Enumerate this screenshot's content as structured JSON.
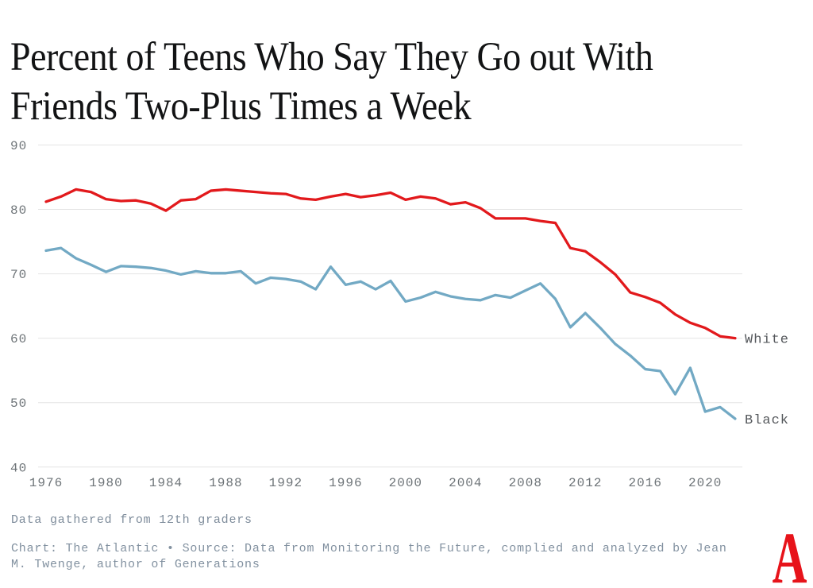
{
  "title": "Percent of Teens Who Say They Go out With Friends Two-Plus Times a Week",
  "footnote": "Data gathered from 12th graders",
  "source_line1": "Chart: The Atlantic • Source: Data from Monitoring the Future, complied and analyzed by Jean",
  "source_line2": "M. Twenge, author of Generations",
  "logo_letter": "A",
  "colors": {
    "white_series": "#e2191c",
    "black_series": "#72a9c4",
    "gridline": "#e4e4e4",
    "tick_label": "#6e7478",
    "series_label": "#55585c",
    "footnote_text": "#7e8c9b",
    "source_text": "#8291a0",
    "title_text": "#121314",
    "logo_red": "#e7131a",
    "background": "#ffffff"
  },
  "chart_data": {
    "type": "line",
    "title": "Percent of Teens Who Say They Go out With Friends Two-Plus Times a Week",
    "xlabel": "",
    "ylabel": "",
    "grid": true,
    "legend_position": "end-of-line",
    "xlim": [
      1976,
      2022
    ],
    "ylim": [
      40,
      90
    ],
    "yticks": [
      90,
      80,
      70,
      60,
      50,
      40
    ],
    "xticks": [
      1976,
      1980,
      1984,
      1988,
      1992,
      1996,
      2000,
      2004,
      2008,
      2012,
      2016,
      2020
    ],
    "x": [
      1976,
      1977,
      1978,
      1979,
      1980,
      1981,
      1982,
      1983,
      1984,
      1985,
      1986,
      1987,
      1988,
      1989,
      1990,
      1991,
      1992,
      1993,
      1994,
      1995,
      1996,
      1997,
      1998,
      1999,
      2000,
      2001,
      2002,
      2003,
      2004,
      2005,
      2006,
      2007,
      2008,
      2009,
      2010,
      2011,
      2012,
      2013,
      2014,
      2015,
      2016,
      2017,
      2018,
      2019,
      2020,
      2021,
      2022
    ],
    "series": [
      {
        "name": "White",
        "color": "#e2191c",
        "values": [
          81.2,
          82.0,
          83.1,
          82.7,
          81.6,
          81.3,
          81.4,
          80.9,
          79.8,
          81.4,
          81.6,
          82.9,
          83.1,
          82.9,
          82.7,
          82.5,
          82.4,
          81.7,
          81.5,
          82.0,
          82.4,
          81.9,
          82.2,
          82.6,
          81.5,
          82.0,
          81.7,
          80.8,
          81.1,
          80.2,
          78.6,
          78.6,
          78.6,
          78.2,
          77.9,
          74.0,
          73.5,
          71.8,
          69.9,
          67.1,
          66.4,
          65.5,
          63.7,
          62.4,
          61.6,
          60.3,
          60.0
        ]
      },
      {
        "name": "Black",
        "color": "#72a9c4",
        "values": [
          73.6,
          74.0,
          72.4,
          71.4,
          70.3,
          71.2,
          71.1,
          70.9,
          70.5,
          69.9,
          70.4,
          70.1,
          70.1,
          70.4,
          68.5,
          69.4,
          69.2,
          68.8,
          67.6,
          71.1,
          68.3,
          68.8,
          67.6,
          68.9,
          65.7,
          66.3,
          67.2,
          66.5,
          66.1,
          65.9,
          66.7,
          66.3,
          67.4,
          68.5,
          66.1,
          61.7,
          63.9,
          61.6,
          59.1,
          57.3,
          55.2,
          54.9,
          51.3,
          55.4,
          48.6,
          49.3,
          47.5
        ]
      }
    ]
  }
}
